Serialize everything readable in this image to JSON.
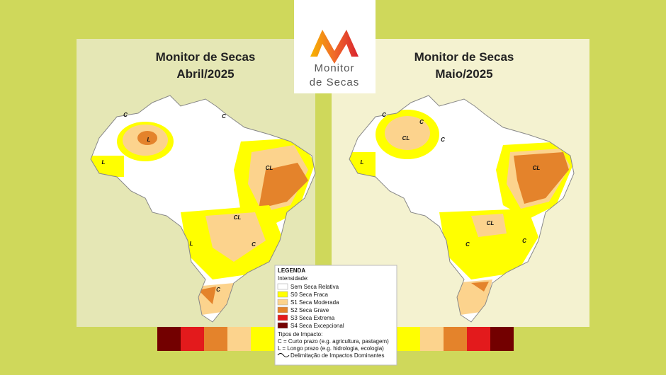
{
  "logo": {
    "lines": [
      "Monitor",
      "de Secas"
    ]
  },
  "maps": [
    {
      "title_lines": [
        "Monitor de Secas",
        "Abril/2025"
      ],
      "labels": [
        "C",
        "C",
        "L",
        "L",
        "CL",
        "CL",
        "L",
        "C",
        "C"
      ]
    },
    {
      "title_lines": [
        "Monitor de Secas",
        "Maio/2025"
      ],
      "labels": [
        "C",
        "C",
        "CL",
        "C",
        "L",
        "CL",
        "CL",
        "C",
        "C"
      ]
    }
  ],
  "legend": {
    "title": "LEGENDA",
    "intensity_heading": "Intensidade:",
    "intensity": [
      {
        "label": "Sem Seca Relativa",
        "color": "#ffffff"
      },
      {
        "label": "S0 Seca Fraca",
        "color": "#ffff00"
      },
      {
        "label": "S1 Seca Moderada",
        "color": "#fcd38d"
      },
      {
        "label": "S2 Seca Grave",
        "color": "#e4832b"
      },
      {
        "label": "S3 Seca Extrema",
        "color": "#e31a1c"
      },
      {
        "label": "S4 Seca Excepcional",
        "color": "#730000"
      }
    ],
    "impact_heading": "Tipos de Impacto:",
    "impact": [
      "C = Curto prazo (e.g. agricultura, pastagem)",
      "L = Longo prazo (e.g. hidrologia, ecologia)"
    ],
    "line_item": "Delimitação de Impactos Dominantes"
  }
}
